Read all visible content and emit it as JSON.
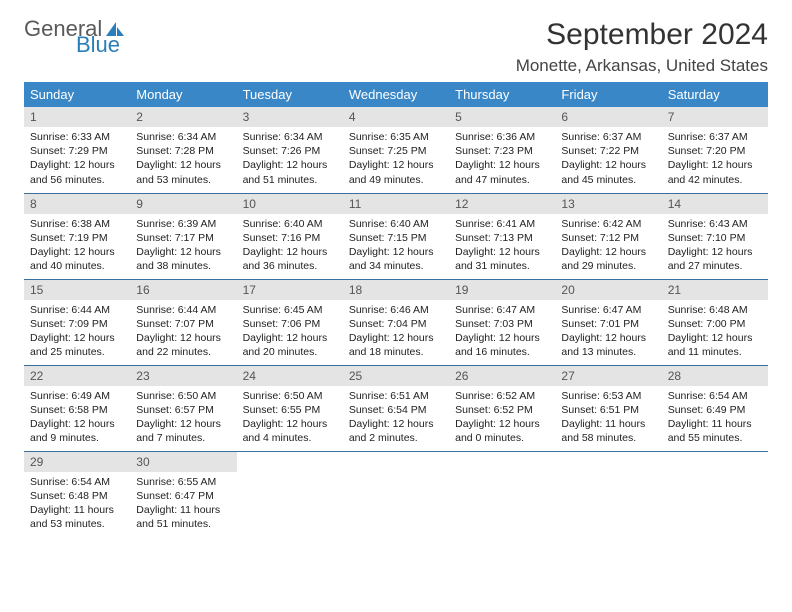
{
  "logo": {
    "part1": "General",
    "part2": "Blue"
  },
  "title": "September 2024",
  "location": "Monette, Arkansas, United States",
  "colors": {
    "header_bg": "#3a87c7",
    "header_fg": "#ffffff",
    "daynum_bg": "#e4e4e4",
    "rule": "#3a6fa0",
    "logo_gray": "#5a5a5a",
    "logo_blue": "#2a7fba"
  },
  "weekdays": [
    "Sunday",
    "Monday",
    "Tuesday",
    "Wednesday",
    "Thursday",
    "Friday",
    "Saturday"
  ],
  "weeks": [
    [
      {
        "n": "1",
        "sr": "6:33 AM",
        "ss": "7:29 PM",
        "dh": "12",
        "dm": "56"
      },
      {
        "n": "2",
        "sr": "6:34 AM",
        "ss": "7:28 PM",
        "dh": "12",
        "dm": "53"
      },
      {
        "n": "3",
        "sr": "6:34 AM",
        "ss": "7:26 PM",
        "dh": "12",
        "dm": "51"
      },
      {
        "n": "4",
        "sr": "6:35 AM",
        "ss": "7:25 PM",
        "dh": "12",
        "dm": "49"
      },
      {
        "n": "5",
        "sr": "6:36 AM",
        "ss": "7:23 PM",
        "dh": "12",
        "dm": "47"
      },
      {
        "n": "6",
        "sr": "6:37 AM",
        "ss": "7:22 PM",
        "dh": "12",
        "dm": "45"
      },
      {
        "n": "7",
        "sr": "6:37 AM",
        "ss": "7:20 PM",
        "dh": "12",
        "dm": "42"
      }
    ],
    [
      {
        "n": "8",
        "sr": "6:38 AM",
        "ss": "7:19 PM",
        "dh": "12",
        "dm": "40"
      },
      {
        "n": "9",
        "sr": "6:39 AM",
        "ss": "7:17 PM",
        "dh": "12",
        "dm": "38"
      },
      {
        "n": "10",
        "sr": "6:40 AM",
        "ss": "7:16 PM",
        "dh": "12",
        "dm": "36"
      },
      {
        "n": "11",
        "sr": "6:40 AM",
        "ss": "7:15 PM",
        "dh": "12",
        "dm": "34"
      },
      {
        "n": "12",
        "sr": "6:41 AM",
        "ss": "7:13 PM",
        "dh": "12",
        "dm": "31"
      },
      {
        "n": "13",
        "sr": "6:42 AM",
        "ss": "7:12 PM",
        "dh": "12",
        "dm": "29"
      },
      {
        "n": "14",
        "sr": "6:43 AM",
        "ss": "7:10 PM",
        "dh": "12",
        "dm": "27"
      }
    ],
    [
      {
        "n": "15",
        "sr": "6:44 AM",
        "ss": "7:09 PM",
        "dh": "12",
        "dm": "25"
      },
      {
        "n": "16",
        "sr": "6:44 AM",
        "ss": "7:07 PM",
        "dh": "12",
        "dm": "22"
      },
      {
        "n": "17",
        "sr": "6:45 AM",
        "ss": "7:06 PM",
        "dh": "12",
        "dm": "20"
      },
      {
        "n": "18",
        "sr": "6:46 AM",
        "ss": "7:04 PM",
        "dh": "12",
        "dm": "18"
      },
      {
        "n": "19",
        "sr": "6:47 AM",
        "ss": "7:03 PM",
        "dh": "12",
        "dm": "16"
      },
      {
        "n": "20",
        "sr": "6:47 AM",
        "ss": "7:01 PM",
        "dh": "12",
        "dm": "13"
      },
      {
        "n": "21",
        "sr": "6:48 AM",
        "ss": "7:00 PM",
        "dh": "12",
        "dm": "11"
      }
    ],
    [
      {
        "n": "22",
        "sr": "6:49 AM",
        "ss": "6:58 PM",
        "dh": "12",
        "dm": "9"
      },
      {
        "n": "23",
        "sr": "6:50 AM",
        "ss": "6:57 PM",
        "dh": "12",
        "dm": "7"
      },
      {
        "n": "24",
        "sr": "6:50 AM",
        "ss": "6:55 PM",
        "dh": "12",
        "dm": "4"
      },
      {
        "n": "25",
        "sr": "6:51 AM",
        "ss": "6:54 PM",
        "dh": "12",
        "dm": "2"
      },
      {
        "n": "26",
        "sr": "6:52 AM",
        "ss": "6:52 PM",
        "dh": "12",
        "dm": "0"
      },
      {
        "n": "27",
        "sr": "6:53 AM",
        "ss": "6:51 PM",
        "dh": "11",
        "dm": "58"
      },
      {
        "n": "28",
        "sr": "6:54 AM",
        "ss": "6:49 PM",
        "dh": "11",
        "dm": "55"
      }
    ],
    [
      {
        "n": "29",
        "sr": "6:54 AM",
        "ss": "6:48 PM",
        "dh": "11",
        "dm": "53"
      },
      {
        "n": "30",
        "sr": "6:55 AM",
        "ss": "6:47 PM",
        "dh": "11",
        "dm": "51"
      },
      null,
      null,
      null,
      null,
      null
    ]
  ]
}
